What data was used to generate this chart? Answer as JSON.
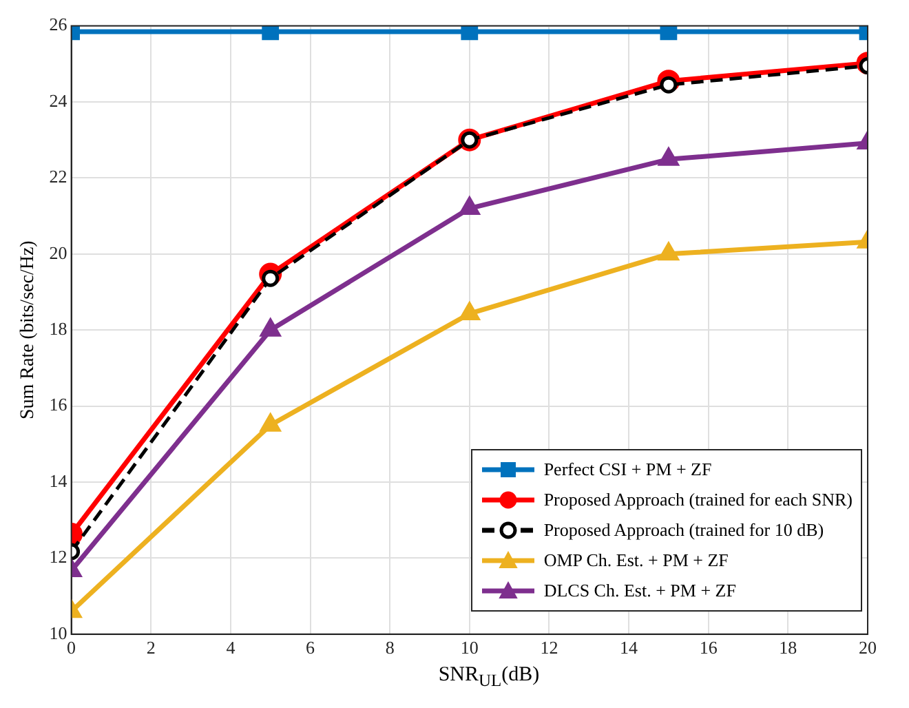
{
  "chart_data": {
    "type": "line",
    "xlabel": "SNR$_{UL}$(dB)",
    "ylabel": "Sum Rate (bits/sec/Hz)",
    "x": [
      0,
      5,
      10,
      15,
      20
    ],
    "xlim": [
      0,
      20
    ],
    "xticks": [
      0,
      2,
      4,
      6,
      8,
      10,
      12,
      14,
      16,
      18,
      20
    ],
    "ylim": [
      10,
      26
    ],
    "yticks": [
      10,
      12,
      14,
      16,
      18,
      20,
      22,
      24,
      26
    ],
    "grid": true,
    "legend": "bottom right",
    "series": [
      {
        "name": "Perfect CSI + PM + ZF",
        "color": "#0072bd",
        "marker": "square",
        "values": [
          25.85,
          25.85,
          25.85,
          25.85,
          25.85
        ]
      },
      {
        "name": "Proposed Approach (trained for each SNR)",
        "color": "#ff0000",
        "marker": "circle",
        "values": [
          12.63,
          19.47,
          23.0,
          24.55,
          25.02
        ]
      },
      {
        "name": "Proposed Approach (trained for 10 dB)",
        "color": "#000000",
        "marker": "circle",
        "line_style": "dashed",
        "values": [
          12.17,
          19.36,
          23.0,
          24.45,
          24.95
        ]
      },
      {
        "name": "OMP Ch. Est. + PM + ZF",
        "color": "#edb120",
        "marker": "triangle",
        "values": [
          10.6,
          15.5,
          18.43,
          20.0,
          20.32
        ]
      },
      {
        "name": "DLCS Ch. Est.  + PM + ZF",
        "color": "#7e2f8e",
        "marker": "triangle",
        "values": [
          11.67,
          18.0,
          21.2,
          22.49,
          22.92
        ]
      }
    ]
  }
}
